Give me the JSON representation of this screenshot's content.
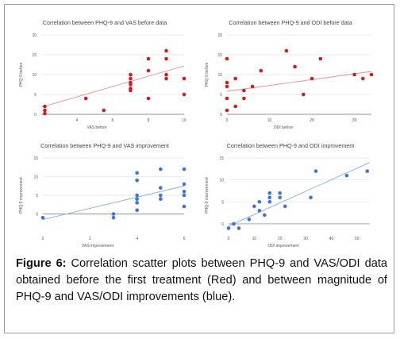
{
  "figure": {
    "label": "Figure 6:",
    "text": " Correlation scatter plots between PHQ-9 and VAS/ODI data obtained before the first treatment (Red) and between magnitude of PHQ-9 and VAS/ODI improvements (blue)."
  },
  "colors": {
    "red": "#d41a1a",
    "blue": "#3d74d8",
    "trend_red": "#e08a8a",
    "trend_blue": "#7fb0dc"
  },
  "chart_data": [
    {
      "type": "scatter",
      "title": "Correlation between PHQ-9 and VAS before data",
      "xlabel": "VAS before",
      "ylabel": "PHQ-9 before",
      "xlim": [
        2,
        10
      ],
      "ylim": [
        0,
        20
      ],
      "xticks": [
        4,
        6,
        8,
        10
      ],
      "yticks": [
        0,
        5,
        10,
        15,
        20
      ],
      "color": "red",
      "trendline": [
        [
          2,
          1.8
        ],
        [
          10,
          12.2
        ]
      ],
      "points": [
        [
          2.2,
          2
        ],
        [
          2.2,
          1
        ],
        [
          2.2,
          0.2
        ],
        [
          4.5,
          4
        ],
        [
          5.5,
          1
        ],
        [
          7,
          10
        ],
        [
          7,
          9
        ],
        [
          7,
          8
        ],
        [
          7,
          7.5
        ],
        [
          7,
          6.5
        ],
        [
          7,
          6
        ],
        [
          8,
          14
        ],
        [
          8,
          11
        ],
        [
          8,
          4
        ],
        [
          9,
          16
        ],
        [
          9,
          14
        ],
        [
          9,
          10
        ],
        [
          9,
          9
        ],
        [
          10,
          9
        ],
        [
          10,
          5
        ]
      ]
    },
    {
      "type": "scatter",
      "title": "Correlation between PHQ-9 and ODI before data",
      "xlabel": "ODI before",
      "ylabel": "PHQ-9 before",
      "xlim": [
        0,
        34
      ],
      "ylim": [
        0,
        20
      ],
      "xticks": [
        0,
        10,
        20,
        30
      ],
      "yticks": [
        0,
        5,
        10,
        15,
        20
      ],
      "color": "red",
      "trendline": [
        [
          0,
          5.8
        ],
        [
          34,
          10.8
        ]
      ],
      "points": [
        [
          0,
          14
        ],
        [
          0,
          8
        ],
        [
          0,
          7
        ],
        [
          0,
          4
        ],
        [
          0,
          1
        ],
        [
          2,
          9
        ],
        [
          2,
          2
        ],
        [
          4,
          6
        ],
        [
          4,
          4
        ],
        [
          6,
          7
        ],
        [
          8,
          11
        ],
        [
          14,
          16
        ],
        [
          16,
          12
        ],
        [
          18,
          5
        ],
        [
          20,
          9
        ],
        [
          22,
          14
        ],
        [
          30,
          10
        ],
        [
          32,
          9
        ],
        [
          34,
          10
        ]
      ]
    },
    {
      "type": "scatter",
      "title": "Correlation between PHQ-9 and VAS improvement",
      "xlabel": "VAS improvement",
      "ylabel": "PHQ-9 improvement",
      "xlim": [
        0,
        6
      ],
      "ylim": [
        -5,
        15
      ],
      "xticks": [
        0,
        2,
        4,
        6
      ],
      "yticks": [
        0,
        5,
        10,
        15
      ],
      "color": "blue",
      "trendline": [
        [
          0,
          -1.5
        ],
        [
          6,
          7.5
        ]
      ],
      "points": [
        [
          0,
          -1
        ],
        [
          3,
          -1
        ],
        [
          3,
          0
        ],
        [
          4,
          11
        ],
        [
          4,
          9
        ],
        [
          4,
          5
        ],
        [
          4,
          4
        ],
        [
          4,
          3
        ],
        [
          4,
          1
        ],
        [
          5,
          12
        ],
        [
          5,
          7
        ],
        [
          5,
          5
        ],
        [
          5,
          4
        ],
        [
          6,
          12
        ],
        [
          6,
          8
        ],
        [
          6,
          6
        ],
        [
          6,
          5
        ],
        [
          6,
          2
        ]
      ]
    },
    {
      "type": "scatter",
      "title": "Correlation between PHQ-9 and ODI improvement",
      "xlabel": "ODI improvement",
      "ylabel": "PHQ-9 improvement",
      "xlim": [
        0,
        55
      ],
      "ylim": [
        -2,
        15
      ],
      "xticks": [
        0,
        10,
        20,
        30,
        40,
        50
      ],
      "yticks": [
        0,
        5,
        10,
        15
      ],
      "color": "blue",
      "trendline": [
        [
          0,
          -0.5
        ],
        [
          55,
          14
        ]
      ],
      "points": [
        [
          0,
          -1
        ],
        [
          2,
          0
        ],
        [
          4,
          -1
        ],
        [
          8,
          1
        ],
        [
          10,
          4
        ],
        [
          12,
          5
        ],
        [
          12,
          3
        ],
        [
          14,
          2
        ],
        [
          16,
          7
        ],
        [
          16,
          6
        ],
        [
          16,
          5
        ],
        [
          20,
          7
        ],
        [
          20,
          6
        ],
        [
          22,
          4
        ],
        [
          32,
          6
        ],
        [
          34,
          12
        ],
        [
          46,
          11
        ],
        [
          54,
          12
        ]
      ]
    }
  ]
}
